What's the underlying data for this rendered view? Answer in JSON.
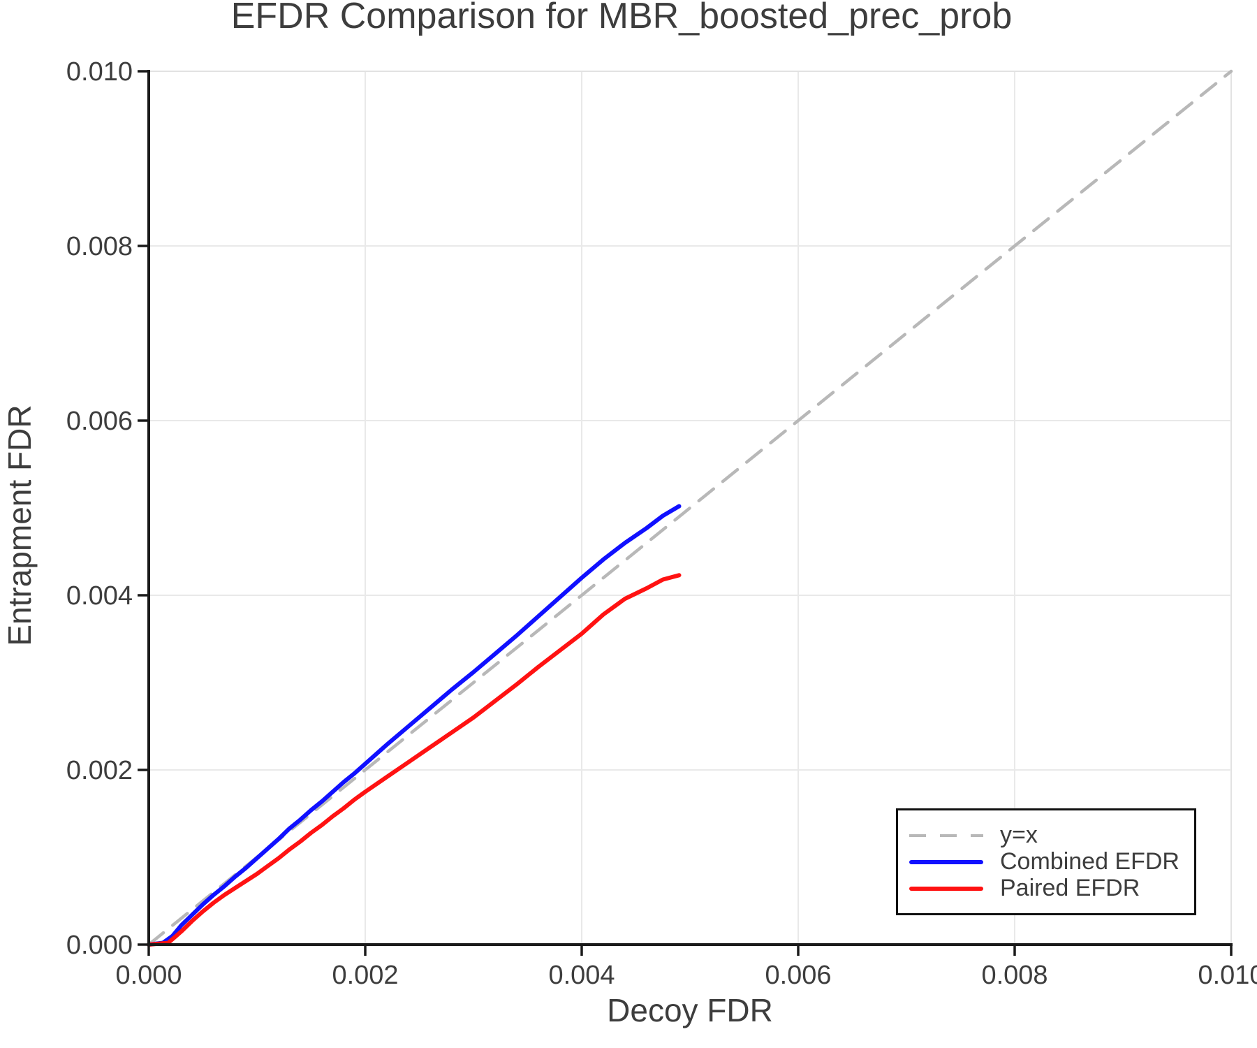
{
  "chart_data": {
    "type": "line",
    "title": "EFDR Comparison for MBR_boosted_prec_prob",
    "xlabel": "Decoy FDR",
    "ylabel": "Entrapment FDR",
    "xlim": [
      0.0,
      0.01
    ],
    "ylim": [
      0.0,
      0.01
    ],
    "grid": true,
    "legend_position": "lower right",
    "xticks": {
      "values": [
        0.0,
        0.002,
        0.004,
        0.006,
        0.008,
        0.01
      ],
      "labels": [
        "0.000",
        "0.002",
        "0.004",
        "0.006",
        "0.008",
        "0.010"
      ]
    },
    "yticks": {
      "values": [
        0.0,
        0.002,
        0.004,
        0.006,
        0.008,
        0.01
      ],
      "labels": [
        "0.000",
        "0.002",
        "0.004",
        "0.006",
        "0.008",
        "0.010"
      ]
    },
    "series": [
      {
        "id": "identity",
        "name": "y=x",
        "style": "dashed",
        "color": "#b8b8b8",
        "width": 4.5,
        "points": [
          [
            0.0,
            0.0
          ],
          [
            0.01,
            0.01
          ]
        ]
      },
      {
        "id": "combined",
        "name": "Combined EFDR",
        "style": "solid",
        "color": "#1010ff",
        "width": 6,
        "points": [
          [
            0.0,
            0.0
          ],
          [
            0.00013,
            2e-05
          ],
          [
            0.00022,
            0.0001
          ],
          [
            0.0003,
            0.00022
          ],
          [
            0.0004,
            0.00034
          ],
          [
            0.0005,
            0.00046
          ],
          [
            0.0006,
            0.00057
          ],
          [
            0.0007,
            0.00067
          ],
          [
            0.0008,
            0.00078
          ],
          [
            0.0009,
            0.00088
          ],
          [
            0.001,
            0.00099
          ],
          [
            0.0011,
            0.0011
          ],
          [
            0.0012,
            0.00121
          ],
          [
            0.0013,
            0.00133
          ],
          [
            0.0014,
            0.00143
          ],
          [
            0.0015,
            0.00154
          ],
          [
            0.0016,
            0.00164
          ],
          [
            0.0017,
            0.00175
          ],
          [
            0.0018,
            0.00186
          ],
          [
            0.0019,
            0.00196
          ],
          [
            0.002,
            0.00207
          ],
          [
            0.0022,
            0.00229
          ],
          [
            0.0024,
            0.0025
          ],
          [
            0.0026,
            0.00271
          ],
          [
            0.0028,
            0.00292
          ],
          [
            0.003,
            0.00312
          ],
          [
            0.0032,
            0.00333
          ],
          [
            0.0034,
            0.00354
          ],
          [
            0.0036,
            0.00376
          ],
          [
            0.0038,
            0.00398
          ],
          [
            0.004,
            0.0042
          ],
          [
            0.0042,
            0.00441
          ],
          [
            0.0044,
            0.0046
          ],
          [
            0.0046,
            0.00477
          ],
          [
            0.00475,
            0.00491
          ],
          [
            0.0049,
            0.00502
          ]
        ]
      },
      {
        "id": "paired",
        "name": "Paired EFDR",
        "style": "solid",
        "color": "#ff1212",
        "width": 6,
        "points": [
          [
            0.0,
            0.0
          ],
          [
            0.00018,
            2e-05
          ],
          [
            0.0003,
            0.00015
          ],
          [
            0.0004,
            0.00027
          ],
          [
            0.0005,
            0.00038
          ],
          [
            0.0006,
            0.00048
          ],
          [
            0.0007,
            0.00057
          ],
          [
            0.0008,
            0.00065
          ],
          [
            0.0009,
            0.00073
          ],
          [
            0.001,
            0.00081
          ],
          [
            0.0011,
            0.0009
          ],
          [
            0.0012,
            0.00099
          ],
          [
            0.0013,
            0.00109
          ],
          [
            0.0014,
            0.00118
          ],
          [
            0.0015,
            0.00128
          ],
          [
            0.0016,
            0.00137
          ],
          [
            0.0017,
            0.00147
          ],
          [
            0.0018,
            0.00156
          ],
          [
            0.0019,
            0.00166
          ],
          [
            0.002,
            0.00175
          ],
          [
            0.0022,
            0.00192
          ],
          [
            0.0024,
            0.00209
          ],
          [
            0.0026,
            0.00226
          ],
          [
            0.0028,
            0.00243
          ],
          [
            0.003,
            0.0026
          ],
          [
            0.0032,
            0.00279
          ],
          [
            0.0034,
            0.00298
          ],
          [
            0.0036,
            0.00318
          ],
          [
            0.0038,
            0.00337
          ],
          [
            0.004,
            0.00356
          ],
          [
            0.0042,
            0.00378
          ],
          [
            0.0044,
            0.00396
          ],
          [
            0.0046,
            0.00408
          ],
          [
            0.00475,
            0.00418
          ],
          [
            0.0049,
            0.00423
          ]
        ]
      }
    ],
    "colors": {
      "grid": "#e9e9e9",
      "frame": "#e2e2e2",
      "spine": "#1a1a1a",
      "text": "#3d3d3d",
      "background": "#ffffff"
    }
  }
}
